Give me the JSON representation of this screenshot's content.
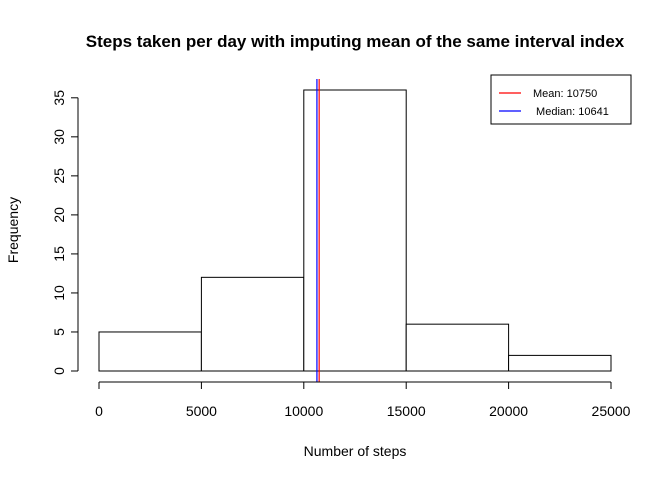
{
  "chart_data": {
    "type": "bar",
    "title": "Steps taken per day with imputing mean of the same interval index",
    "xlabel": "Number of steps",
    "ylabel": "Frequency",
    "bins": [
      {
        "from": 0,
        "to": 5000,
        "count": 5
      },
      {
        "from": 5000,
        "to": 10000,
        "count": 12
      },
      {
        "from": 10000,
        "to": 15000,
        "count": 36
      },
      {
        "from": 15000,
        "to": 20000,
        "count": 6
      },
      {
        "from": 20000,
        "to": 25000,
        "count": 2
      }
    ],
    "xlim": [
      0,
      25000
    ],
    "ylim": [
      0,
      36
    ],
    "xticks": [
      0,
      5000,
      10000,
      15000,
      20000,
      25000
    ],
    "yticks": [
      0,
      5,
      10,
      15,
      20,
      25,
      30,
      35
    ],
    "grid": false,
    "vlines": [
      {
        "name": "Mean: 10750",
        "value": 10750,
        "color": "#ff0000"
      },
      {
        "name": "Median: 10641",
        "value": 10641,
        "color": "#0000ff"
      }
    ],
    "legend": {
      "position": "top-right",
      "entries": [
        {
          "label": "Mean: 10750",
          "color": "#ff0000"
        },
        {
          "label": " Median: 10641",
          "color": "#0000ff"
        }
      ]
    },
    "colors": {
      "bar_fill": "#ffffff",
      "bar_stroke": "#000000",
      "axis": "#000000"
    }
  }
}
